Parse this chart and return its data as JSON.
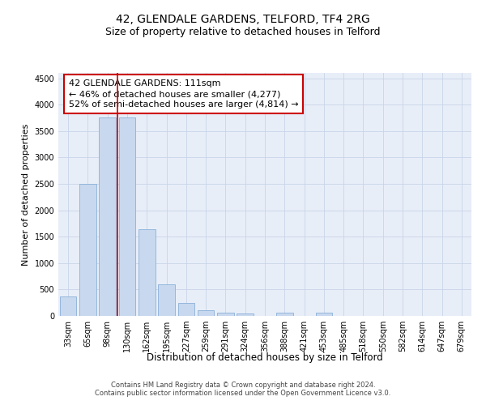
{
  "title": "42, GLENDALE GARDENS, TELFORD, TF4 2RG",
  "subtitle": "Size of property relative to detached houses in Telford",
  "xlabel": "Distribution of detached houses by size in Telford",
  "ylabel": "Number of detached properties",
  "categories": [
    "33sqm",
    "65sqm",
    "98sqm",
    "130sqm",
    "162sqm",
    "195sqm",
    "227sqm",
    "259sqm",
    "291sqm",
    "324sqm",
    "356sqm",
    "388sqm",
    "421sqm",
    "453sqm",
    "485sqm",
    "518sqm",
    "550sqm",
    "582sqm",
    "614sqm",
    "647sqm",
    "679sqm"
  ],
  "values": [
    370,
    2500,
    3750,
    3750,
    1640,
    600,
    240,
    105,
    60,
    45,
    0,
    60,
    0,
    55,
    0,
    0,
    0,
    0,
    0,
    0,
    0
  ],
  "bar_facecolor": "#c8d8ee",
  "bar_edgecolor": "#8ab0d8",
  "vline_x": 2.5,
  "vline_color": "#cc0000",
  "annotation_text": "42 GLENDALE GARDENS: 111sqm\n← 46% of detached houses are smaller (4,277)\n52% of semi-detached houses are larger (4,814) →",
  "ylim": [
    0,
    4600
  ],
  "yticks": [
    0,
    500,
    1000,
    1500,
    2000,
    2500,
    3000,
    3500,
    4000,
    4500
  ],
  "grid_color": "#c8d4e8",
  "background_color": "#e8eef8",
  "footer_text": "Contains HM Land Registry data © Crown copyright and database right 2024.\nContains public sector information licensed under the Open Government Licence v3.0.",
  "title_fontsize": 10,
  "subtitle_fontsize": 9,
  "xlabel_fontsize": 8.5,
  "ylabel_fontsize": 8,
  "tick_fontsize": 7,
  "footer_fontsize": 6,
  "annotation_fontsize": 8
}
